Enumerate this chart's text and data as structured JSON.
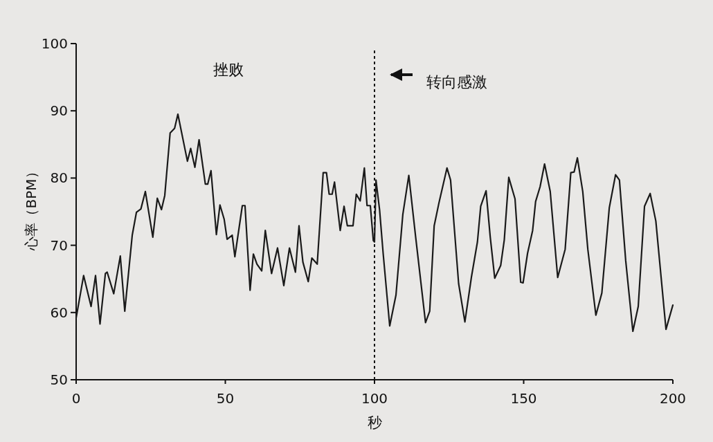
{
  "chart_data": {
    "type": "line",
    "xlabel": "秒",
    "ylabel": "心率（BPM）",
    "xlim": [
      0,
      200
    ],
    "ylim": [
      50,
      100
    ],
    "xticks": [
      0,
      50,
      100,
      150,
      200
    ],
    "yticks": [
      50,
      60,
      70,
      80,
      90,
      100
    ],
    "grid": false,
    "marker": "none",
    "line_style": "solid",
    "annotations": [
      "挫败"
    ],
    "ref_lines": [
      {
        "axis": "x",
        "value": 100,
        "label": "转向感激",
        "line_style": "dashed",
        "color": "#111111"
      }
    ],
    "series": [
      {
        "color": "#1a1a1a",
        "x": [
          0,
          2.5,
          5.0,
          6.5,
          8.0,
          9.8,
          10.4,
          12.6,
          14.8,
          16.3,
          18.8,
          20.2,
          21.7,
          23.2,
          25.7,
          27.2,
          28.6,
          29.7,
          31.5,
          33.0,
          34.1,
          37.3,
          38.4,
          39.8,
          41.2,
          43.3,
          44.1,
          45.2,
          47.0,
          48.2,
          49.6,
          50.6,
          52.3,
          53.2,
          55.7,
          56.6,
          58.3,
          59.4,
          60.6,
          62.2,
          63.4,
          65.5,
          67.5,
          69.6,
          71.5,
          73.5,
          74.7,
          76.0,
          77.8,
          79.0,
          80.8,
          82.8,
          83.9,
          84.8,
          85.8,
          86.6,
          88.5,
          89.8,
          90.9,
          92.8,
          93.9,
          95.2,
          96.6,
          97.5,
          98.6,
          99.6,
          100.0,
          100.5,
          101.7,
          102.9,
          105.1,
          107.2,
          109.5,
          111.5,
          113.8,
          117.1,
          118.5,
          120.0,
          121.6,
          124.3,
          125.5,
          128.2,
          130.3,
          132.5,
          134.5,
          135.6,
          137.4,
          138.8,
          140.3,
          142.3,
          143.5,
          145.0,
          147.1,
          149.0,
          149.8,
          151.3,
          153.0,
          154.0,
          155.5,
          157.0,
          158.9,
          161.4,
          163.9,
          165.8,
          166.9,
          168.0,
          169.8,
          171.5,
          174.2,
          176.2,
          178.7,
          180.8,
          182.1,
          184.2,
          186.6,
          188.4,
          190.5,
          192.4,
          194.3,
          197.7,
          200.0
        ],
        "values": [
          59.2,
          65.5,
          60.9,
          65.5,
          58.3,
          65.8,
          66.0,
          62.8,
          68.4,
          60.2,
          71.5,
          74.9,
          75.4,
          78.0,
          71.2,
          77.0,
          75.3,
          77.4,
          86.7,
          87.4,
          89.5,
          82.5,
          84.4,
          81.6,
          85.7,
          79.1,
          79.1,
          81.1,
          71.6,
          76.0,
          73.9,
          70.9,
          71.5,
          68.3,
          75.9,
          75.9,
          63.3,
          68.7,
          67.2,
          66.2,
          72.2,
          65.8,
          69.6,
          64.0,
          69.6,
          66.0,
          72.9,
          67.5,
          64.6,
          68.1,
          67.2,
          80.8,
          80.8,
          77.6,
          77.6,
          79.4,
          72.2,
          75.8,
          72.9,
          72.9,
          77.6,
          76.6,
          81.5,
          75.9,
          75.9,
          70.7,
          70.5,
          79.7,
          75.3,
          68.8,
          58.0,
          62.6,
          74.6,
          80.4,
          71.2,
          58.5,
          60.2,
          72.9,
          76.3,
          81.5,
          79.7,
          64.3,
          58.6,
          65.3,
          70.5,
          75.8,
          78.1,
          71.2,
          65.1,
          67.0,
          70.8,
          80.1,
          76.9,
          64.5,
          64.4,
          68.8,
          72.2,
          76.5,
          78.7,
          82.1,
          78.0,
          65.2,
          69.4,
          80.8,
          80.9,
          83.0,
          78.0,
          69.4,
          59.6,
          62.9,
          75.6,
          80.5,
          79.7,
          67.7,
          57.2,
          60.9,
          75.8,
          77.7,
          73.6,
          57.5,
          61.1
        ]
      }
    ]
  }
}
